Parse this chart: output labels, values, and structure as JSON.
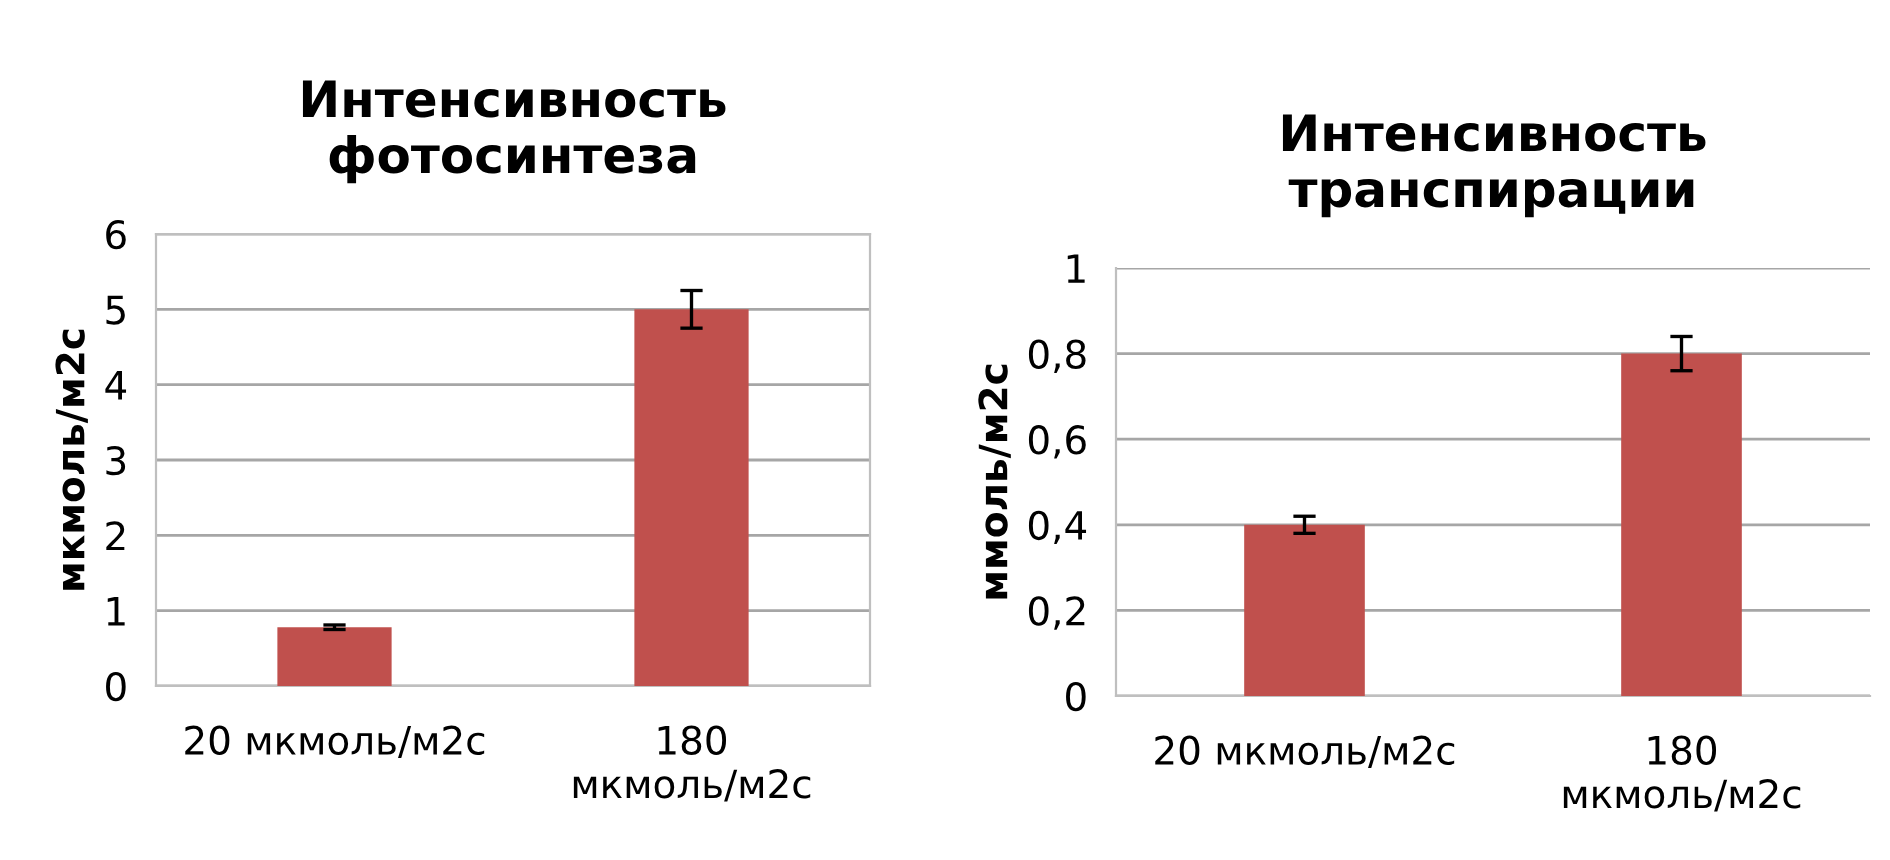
{
  "chart_data": [
    {
      "type": "bar",
      "title": "Интенсивность\nфотосинтеза",
      "ylabel": "мкмоль/м2с",
      "categories": [
        "20 мкмоль/м2с",
        "180\nмкмоль/м2с"
      ],
      "values": [
        0.78,
        5.0
      ],
      "errors": [
        0.03,
        0.25
      ],
      "color": "#c0504d",
      "ylim": [
        0,
        6
      ],
      "yticks": [
        0,
        1,
        2,
        3,
        4,
        5,
        6
      ],
      "grid": "y"
    },
    {
      "type": "bar",
      "title": "Интенсивность\nтранспирации",
      "ylabel": "ммоль/м2с",
      "categories": [
        "20 мкмоль/м2с",
        "180\nмкмоль/м2с"
      ],
      "values": [
        0.4,
        0.8
      ],
      "errors": [
        0.02,
        0.04
      ],
      "color": "#c0504d",
      "ylim": [
        0,
        1
      ],
      "yticks": [
        0,
        {
          "value": 0.2,
          "label": "0,2"
        },
        {
          "value": 0.4,
          "label": "0,4"
        },
        {
          "value": 0.6,
          "label": "0,6"
        },
        {
          "value": 0.8,
          "label": "0,8"
        },
        1
      ],
      "grid": "y"
    }
  ]
}
